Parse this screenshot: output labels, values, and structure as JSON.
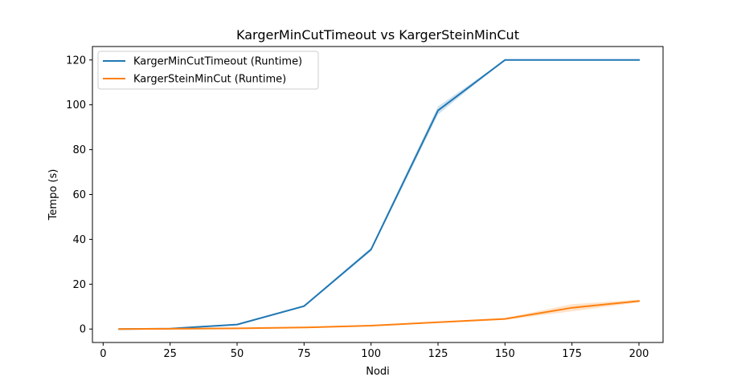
{
  "chart_data": {
    "type": "line",
    "title": "KargerMinCutTimeout vs KargerSteinMinCut",
    "xlabel": "Nodi",
    "ylabel": "Tempo (s)",
    "xlim": [
      -4,
      209
    ],
    "ylim": [
      -6,
      126
    ],
    "xticks": [
      0,
      25,
      50,
      75,
      100,
      125,
      150,
      175,
      200
    ],
    "yticks": [
      0,
      20,
      40,
      60,
      80,
      100,
      120
    ],
    "grid": false,
    "legend_position": "top-left",
    "series": [
      {
        "name": "KargerMinCutTimeout (Runtime)",
        "color": "#1f77b4",
        "x": [
          6,
          25,
          50,
          75,
          100,
          125,
          150,
          175,
          200
        ],
        "y": [
          0.0,
          0.2,
          2.0,
          10.2,
          35.5,
          97.5,
          120.0,
          120.0,
          120.0
        ],
        "band": [
          0.0,
          0.0,
          0.2,
          0.4,
          0.8,
          1.8,
          0.0,
          0.0,
          0.0
        ]
      },
      {
        "name": "KargerSteinMinCut (Runtime)",
        "color": "#ff7f0e",
        "x": [
          6,
          25,
          50,
          75,
          100,
          125,
          150,
          175,
          200
        ],
        "y": [
          0.0,
          0.1,
          0.3,
          0.7,
          1.5,
          3.0,
          4.5,
          9.5,
          12.5
        ],
        "band": [
          0.0,
          0.0,
          0.1,
          0.1,
          0.2,
          0.3,
          0.4,
          1.6,
          0.6
        ]
      }
    ]
  }
}
